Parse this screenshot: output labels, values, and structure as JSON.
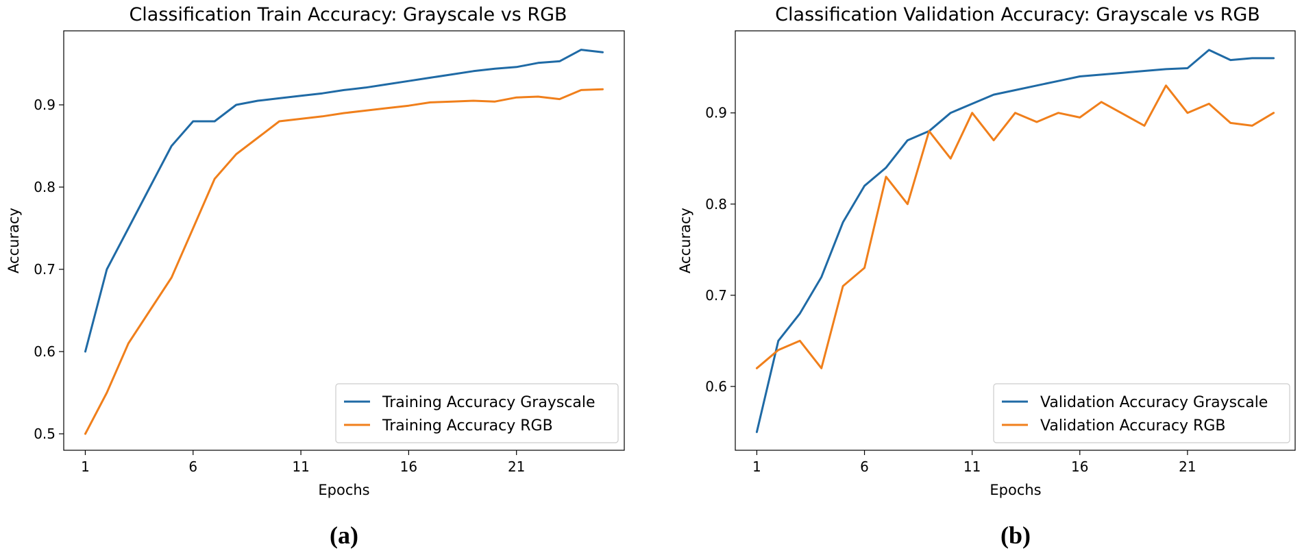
{
  "colors": {
    "grayscale": "#1f6aa5",
    "rgb": "#f07f1b"
  },
  "chart_data": [
    {
      "type": "line",
      "title": "Classification Train Accuracy: Grayscale vs RGB",
      "xlabel": "Epochs",
      "ylabel": "Accuracy",
      "xlim": [
        0,
        26
      ],
      "ylim": [
        0.48,
        0.99
      ],
      "xticks": [
        1,
        6,
        11,
        16,
        21
      ],
      "yticks": [
        0.5,
        0.6,
        0.7,
        0.8,
        0.9
      ],
      "ytick_labels": [
        "0.5",
        "0.6",
        "0.7",
        "0.8",
        "0.9"
      ],
      "x": [
        1,
        2,
        3,
        4,
        5,
        6,
        7,
        8,
        9,
        10,
        11,
        12,
        13,
        14,
        15,
        16,
        17,
        18,
        19,
        20,
        21,
        22,
        23,
        24,
        25
      ],
      "series": [
        {
          "name": "Training Accuracy Grayscale",
          "color_key": "grayscale",
          "values": [
            0.6,
            0.7,
            0.75,
            0.8,
            0.85,
            0.88,
            0.88,
            0.9,
            0.905,
            0.908,
            0.911,
            0.914,
            0.918,
            0.921,
            0.925,
            0.929,
            0.933,
            0.937,
            0.941,
            0.944,
            0.946,
            0.951,
            0.953,
            0.967,
            0.964
          ]
        },
        {
          "name": "Training Accuracy RGB",
          "color_key": "rgb",
          "values": [
            0.5,
            0.55,
            0.61,
            0.65,
            0.69,
            0.75,
            0.81,
            0.84,
            0.86,
            0.88,
            0.883,
            0.886,
            0.89,
            0.893,
            0.896,
            0.899,
            0.903,
            0.904,
            0.905,
            0.904,
            0.909,
            0.91,
            0.907,
            0.918,
            0.919
          ]
        }
      ],
      "legend": "lower-right",
      "caption": "(a)"
    },
    {
      "type": "line",
      "title": "Classification Validation Accuracy: Grayscale vs RGB",
      "xlabel": "Epochs",
      "ylabel": "Accuracy",
      "xlim": [
        0,
        26
      ],
      "ylim": [
        0.53,
        0.99
      ],
      "xticks": [
        1,
        6,
        11,
        16,
        21
      ],
      "yticks": [
        0.6,
        0.7,
        0.8,
        0.9
      ],
      "ytick_labels": [
        "0.6",
        "0.7",
        "0.8",
        "0.9"
      ],
      "x": [
        1,
        2,
        3,
        4,
        5,
        6,
        7,
        8,
        9,
        10,
        11,
        12,
        13,
        14,
        15,
        16,
        17,
        18,
        19,
        20,
        21,
        22,
        23,
        24,
        25
      ],
      "series": [
        {
          "name": "Validation Accuracy Grayscale",
          "color_key": "grayscale",
          "values": [
            0.55,
            0.65,
            0.68,
            0.72,
            0.78,
            0.82,
            0.84,
            0.87,
            0.88,
            0.9,
            0.91,
            0.92,
            0.925,
            0.93,
            0.935,
            0.94,
            0.942,
            0.944,
            0.946,
            0.948,
            0.949,
            0.969,
            0.958,
            0.96,
            0.96
          ]
        },
        {
          "name": "Validation Accuracy RGB",
          "color_key": "rgb",
          "values": [
            0.62,
            0.64,
            0.65,
            0.62,
            0.71,
            0.73,
            0.83,
            0.8,
            0.88,
            0.85,
            0.9,
            0.87,
            0.9,
            0.89,
            0.9,
            0.895,
            0.912,
            0.899,
            0.886,
            0.93,
            0.9,
            0.91,
            0.889,
            0.886,
            0.9
          ]
        }
      ],
      "legend": "lower-right",
      "caption": "(b)"
    }
  ]
}
